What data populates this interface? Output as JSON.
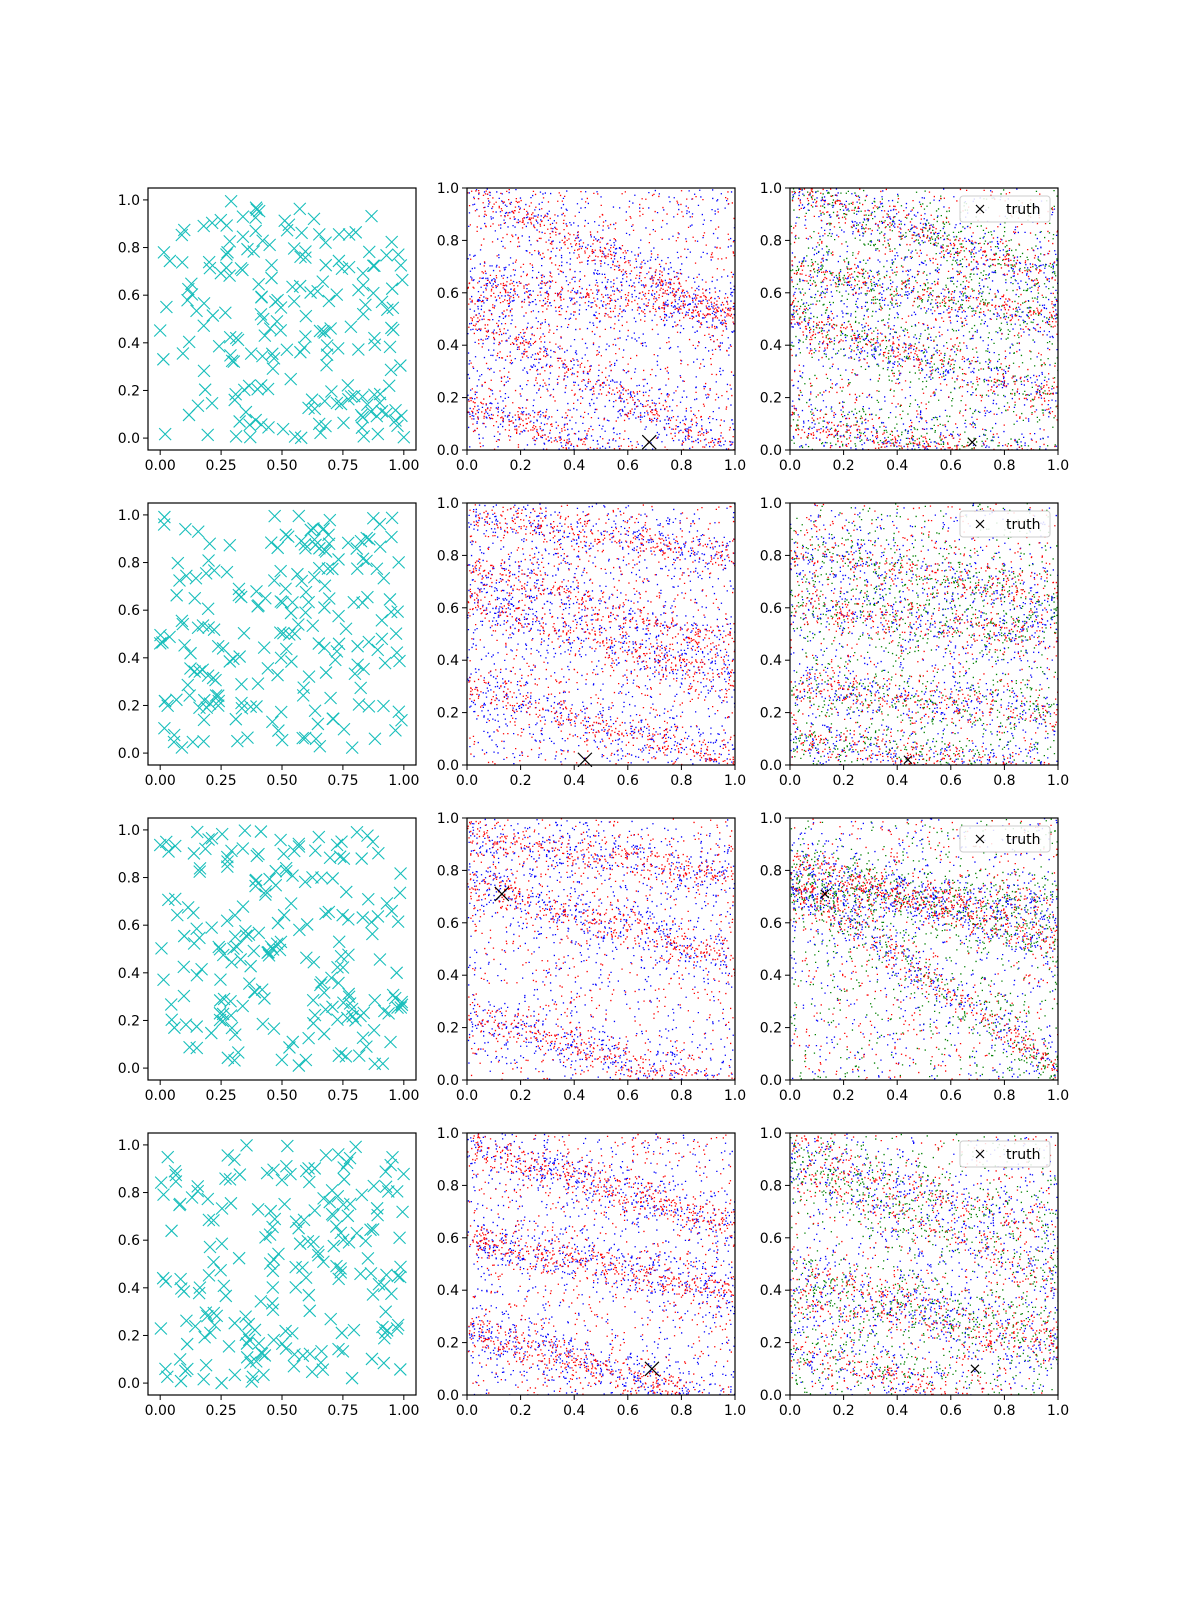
{
  "figure": {
    "rows": 4,
    "cols": 3,
    "description_order": "each row: [samples scatter, 2-series scatter with truth, 3-series scatter with truth + legend]"
  },
  "colors": {
    "samples": "#17bebb",
    "series_red": "#ff0000",
    "series_blue": "#0000ff",
    "series_green": "#008000",
    "truth": "#000000"
  },
  "legend": {
    "label": "truth",
    "placement": "top-right"
  },
  "chart_data": [
    {
      "row": 0,
      "col": 0,
      "type": "scatter",
      "marker": "x",
      "xlim": [
        -0.05,
        1.05
      ],
      "ylim": [
        -0.05,
        1.05
      ],
      "xticks": [
        0.0,
        0.25,
        0.5,
        0.75,
        1.0
      ],
      "xtick_labels": [
        "0.00",
        "0.25",
        "0.50",
        "0.75",
        "1.00"
      ],
      "yticks": [
        0.0,
        0.2,
        0.4,
        0.6,
        0.8,
        1.0
      ],
      "ytick_labels": [
        "0.0",
        "0.2",
        "0.4",
        "0.6",
        "0.8",
        "1.0"
      ],
      "samples_count": 200
    },
    {
      "row": 0,
      "col": 1,
      "type": "scatter",
      "xlim": [
        0,
        1
      ],
      "ylim": [
        0,
        1
      ],
      "xticks": [
        0,
        0.2,
        0.4,
        0.6,
        0.8,
        1.0
      ],
      "xtick_labels": [
        "0.0",
        "0.2",
        "0.4",
        "0.6",
        "0.8",
        "1.0"
      ],
      "yticks": [
        0,
        0.2,
        0.4,
        0.6,
        0.8,
        1.0
      ],
      "ytick_labels": [
        "0.0",
        "0.2",
        "0.4",
        "0.6",
        "0.8",
        "1.0"
      ],
      "truth": [
        0.68,
        0.03
      ],
      "bands": [
        {
          "y0": 1.0,
          "slope": -0.5
        },
        {
          "y0": 0.5,
          "slope": -0.5
        },
        {
          "y0": 0.18,
          "slope": -0.4
        },
        {
          "y0": 0.63,
          "slope": -0.1
        }
      ],
      "series": [
        {
          "color": "series_red",
          "count": 1800
        },
        {
          "color": "series_blue",
          "count": 1800
        }
      ]
    },
    {
      "row": 0,
      "col": 2,
      "type": "scatter",
      "xlim": [
        0,
        1
      ],
      "ylim": [
        0,
        1
      ],
      "xticks": [
        0,
        0.2,
        0.4,
        0.6,
        0.8,
        1.0
      ],
      "xtick_labels": [
        "0.0",
        "0.2",
        "0.4",
        "0.6",
        "0.8",
        "1.0"
      ],
      "yticks": [
        0,
        0.2,
        0.4,
        0.6,
        0.8,
        1.0
      ],
      "ytick_labels": [
        "0.0",
        "0.2",
        "0.4",
        "0.6",
        "0.8",
        "1.0"
      ],
      "truth": [
        0.68,
        0.03
      ],
      "legend": true,
      "bands": [
        {
          "y0": 1.0,
          "slope": -0.35
        },
        {
          "y0": 0.5,
          "slope": -0.3
        },
        {
          "y0": 0.1,
          "slope": -0.15
        },
        {
          "y0": 0.7,
          "slope": -0.2
        }
      ],
      "series": [
        {
          "color": "series_red",
          "count": 1500
        },
        {
          "color": "series_blue",
          "count": 1500
        },
        {
          "color": "series_green",
          "count": 1500
        }
      ]
    },
    {
      "row": 1,
      "col": 0,
      "type": "scatter",
      "marker": "x",
      "xlim": [
        -0.05,
        1.05
      ],
      "ylim": [
        -0.05,
        1.05
      ],
      "xticks": [
        0.0,
        0.25,
        0.5,
        0.75,
        1.0
      ],
      "xtick_labels": [
        "0.00",
        "0.25",
        "0.50",
        "0.75",
        "1.00"
      ],
      "yticks": [
        0.0,
        0.2,
        0.4,
        0.6,
        0.8,
        1.0
      ],
      "ytick_labels": [
        "0.0",
        "0.2",
        "0.4",
        "0.6",
        "0.8",
        "1.0"
      ],
      "samples_count": 200
    },
    {
      "row": 1,
      "col": 1,
      "type": "scatter",
      "xlim": [
        0,
        1
      ],
      "ylim": [
        0,
        1
      ],
      "xticks": [
        0,
        0.2,
        0.4,
        0.6,
        0.8,
        1.0
      ],
      "xtick_labels": [
        "0.0",
        "0.2",
        "0.4",
        "0.6",
        "0.8",
        "1.0"
      ],
      "yticks": [
        0,
        0.2,
        0.4,
        0.6,
        0.8,
        1.0
      ],
      "ytick_labels": [
        "0.0",
        "0.2",
        "0.4",
        "0.6",
        "0.8",
        "1.0"
      ],
      "truth": [
        0.44,
        0.02
      ],
      "bands": [
        {
          "y0": 0.76,
          "slope": -0.3
        },
        {
          "y0": 0.3,
          "slope": -0.3
        },
        {
          "y0": 0.62,
          "slope": -0.3
        },
        {
          "y0": 0.95,
          "slope": -0.15
        }
      ],
      "series": [
        {
          "color": "series_red",
          "count": 1700
        },
        {
          "color": "series_blue",
          "count": 1700
        }
      ]
    },
    {
      "row": 1,
      "col": 2,
      "type": "scatter",
      "xlim": [
        0,
        1
      ],
      "ylim": [
        0,
        1
      ],
      "xticks": [
        0,
        0.2,
        0.4,
        0.6,
        0.8,
        1.0
      ],
      "xtick_labels": [
        "0.0",
        "0.2",
        "0.4",
        "0.6",
        "0.8",
        "1.0"
      ],
      "yticks": [
        0,
        0.2,
        0.4,
        0.6,
        0.8,
        1.0
      ],
      "ytick_labels": [
        "0.0",
        "0.2",
        "0.4",
        "0.6",
        "0.8",
        "1.0"
      ],
      "truth": [
        0.44,
        0.02
      ],
      "legend": true,
      "bands": [
        {
          "y0": 0.1,
          "slope": -0.15
        },
        {
          "y0": 0.8,
          "slope": -0.15
        },
        {
          "y0": 0.6,
          "slope": -0.1
        },
        {
          "y0": 0.3,
          "slope": -0.1
        }
      ],
      "series": [
        {
          "color": "series_red",
          "count": 1400
        },
        {
          "color": "series_blue",
          "count": 1400
        },
        {
          "color": "series_green",
          "count": 1400
        }
      ]
    },
    {
      "row": 2,
      "col": 0,
      "type": "scatter",
      "marker": "x",
      "xlim": [
        -0.05,
        1.05
      ],
      "ylim": [
        -0.05,
        1.05
      ],
      "xticks": [
        0.0,
        0.25,
        0.5,
        0.75,
        1.0
      ],
      "xtick_labels": [
        "0.00",
        "0.25",
        "0.50",
        "0.75",
        "1.00"
      ],
      "yticks": [
        0.0,
        0.2,
        0.4,
        0.6,
        0.8,
        1.0
      ],
      "ytick_labels": [
        "0.0",
        "0.2",
        "0.4",
        "0.6",
        "0.8",
        "1.0"
      ],
      "samples_count": 200
    },
    {
      "row": 2,
      "col": 1,
      "type": "scatter",
      "xlim": [
        0,
        1
      ],
      "ylim": [
        0,
        1
      ],
      "xticks": [
        0,
        0.2,
        0.4,
        0.6,
        0.8,
        1.0
      ],
      "xtick_labels": [
        "0.0",
        "0.2",
        "0.4",
        "0.6",
        "0.8",
        "1.0"
      ],
      "yticks": [
        0,
        0.2,
        0.4,
        0.6,
        0.8,
        1.0
      ],
      "ytick_labels": [
        "0.0",
        "0.2",
        "0.4",
        "0.6",
        "0.8",
        "1.0"
      ],
      "truth": [
        0.13,
        0.71
      ],
      "bands": [
        {
          "y0": 0.76,
          "slope": -0.3
        },
        {
          "y0": 0.93,
          "slope": -0.15
        },
        {
          "y0": 0.25,
          "slope": -0.3
        }
      ],
      "series": [
        {
          "color": "series_red",
          "count": 1500
        },
        {
          "color": "series_blue",
          "count": 1500
        }
      ]
    },
    {
      "row": 2,
      "col": 2,
      "type": "scatter",
      "xlim": [
        0,
        1
      ],
      "ylim": [
        0,
        1
      ],
      "xticks": [
        0,
        0.2,
        0.4,
        0.6,
        0.8,
        1.0
      ],
      "xtick_labels": [
        "0.0",
        "0.2",
        "0.4",
        "0.6",
        "0.8",
        "1.0"
      ],
      "yticks": [
        0,
        0.2,
        0.4,
        0.6,
        0.8,
        1.0
      ],
      "ytick_labels": [
        "0.0",
        "0.2",
        "0.4",
        "0.6",
        "0.8",
        "1.0"
      ],
      "truth": [
        0.13,
        0.71
      ],
      "legend": true,
      "bands": [
        {
          "y0": 0.72,
          "slope": -0.05
        },
        {
          "y0": 0.83,
          "slope": -0.3
        },
        {
          "y0": 0.75,
          "slope": -0.7
        }
      ],
      "series": [
        {
          "color": "series_red",
          "count": 1300
        },
        {
          "color": "series_blue",
          "count": 1300
        },
        {
          "color": "series_green",
          "count": 1300
        }
      ]
    },
    {
      "row": 3,
      "col": 0,
      "type": "scatter",
      "marker": "x",
      "xlim": [
        -0.05,
        1.05
      ],
      "ylim": [
        -0.05,
        1.05
      ],
      "xticks": [
        0.0,
        0.25,
        0.5,
        0.75,
        1.0
      ],
      "xtick_labels": [
        "0.00",
        "0.25",
        "0.50",
        "0.75",
        "1.00"
      ],
      "yticks": [
        0.0,
        0.2,
        0.4,
        0.6,
        0.8,
        1.0
      ],
      "ytick_labels": [
        "0.0",
        "0.2",
        "0.4",
        "0.6",
        "0.8",
        "1.0"
      ],
      "samples_count": 200
    },
    {
      "row": 3,
      "col": 1,
      "type": "scatter",
      "xlim": [
        0,
        1
      ],
      "ylim": [
        0,
        1
      ],
      "xticks": [
        0,
        0.2,
        0.4,
        0.6,
        0.8,
        1.0
      ],
      "xtick_labels": [
        "0.0",
        "0.2",
        "0.4",
        "0.6",
        "0.8",
        "1.0"
      ],
      "yticks": [
        0,
        0.2,
        0.4,
        0.6,
        0.8,
        1.0
      ],
      "ytick_labels": [
        "0.0",
        "0.2",
        "0.4",
        "0.6",
        "0.8",
        "1.0"
      ],
      "truth": [
        0.69,
        0.1
      ],
      "bands": [
        {
          "y0": 0.25,
          "slope": -0.3
        },
        {
          "y0": 0.95,
          "slope": -0.3
        },
        {
          "y0": 0.6,
          "slope": -0.2
        }
      ],
      "series": [
        {
          "color": "series_red",
          "count": 1700
        },
        {
          "color": "series_blue",
          "count": 1700
        }
      ]
    },
    {
      "row": 3,
      "col": 2,
      "type": "scatter",
      "xlim": [
        0,
        1
      ],
      "ylim": [
        0,
        1
      ],
      "xticks": [
        0,
        0.2,
        0.4,
        0.6,
        0.8,
        1.0
      ],
      "xtick_labels": [
        "0.0",
        "0.2",
        "0.4",
        "0.6",
        "0.8",
        "1.0"
      ],
      "yticks": [
        0,
        0.2,
        0.4,
        0.6,
        0.8,
        1.0
      ],
      "ytick_labels": [
        "0.0",
        "0.2",
        "0.4",
        "0.6",
        "0.8",
        "1.0"
      ],
      "truth": [
        0.69,
        0.1
      ],
      "legend": true,
      "bands": [
        {
          "y0": 0.95,
          "slope": -0.35
        },
        {
          "y0": 0.88,
          "slope": -0.45
        },
        {
          "y0": 0.37,
          "slope": -0.2
        },
        {
          "y0": 0.48,
          "slope": -0.25
        },
        {
          "y0": 0.17,
          "slope": -0.25
        }
      ],
      "series": [
        {
          "color": "series_red",
          "count": 1300
        },
        {
          "color": "series_blue",
          "count": 1300
        },
        {
          "color": "series_green",
          "count": 1300
        }
      ]
    }
  ]
}
